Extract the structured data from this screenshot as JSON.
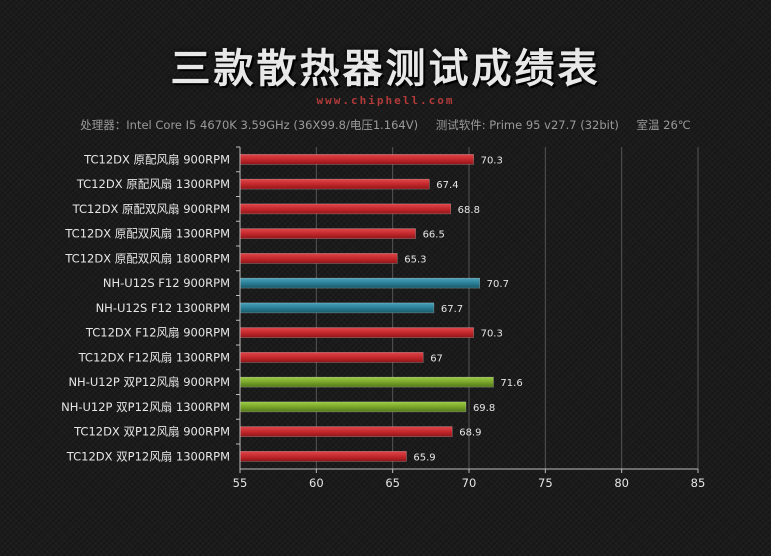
{
  "header": {
    "title": "三款散热器测试成绩表",
    "watermark": "www.chiphell.com",
    "cpu": "处理器：Intel Core I5 4670K 3.59GHz (36X99.8/电压1.164V)",
    "software": "测试软件: Prime 95 v27.7 (32bit)",
    "room_temp": "室温 26℃"
  },
  "chart_data": {
    "type": "bar",
    "orientation": "horizontal",
    "title": "三款散热器测试成绩表",
    "xlim": [
      55,
      85
    ],
    "xticks": [
      55,
      60,
      65,
      70,
      75,
      80,
      85
    ],
    "grid": true,
    "categories": [
      "TC12DX 原配风扇 900RPM",
      "TC12DX 原配风扇 1300RPM",
      "TC12DX 原配双风扇 900RPM",
      "TC12DX 原配双风扇 1300RPM",
      "TC12DX 原配双风扇 1800RPM",
      "NH-U12S F12 900RPM",
      "NH-U12S F12 1300RPM",
      "TC12DX F12风扇 900RPM",
      "TC12DX F12风扇 1300RPM",
      "NH-U12P 双P12风扇 900RPM",
      "NH-U12P 双P12风扇 1300RPM",
      "TC12DX 双P12风扇 900RPM",
      "TC12DX 双P12风扇 1300RPM"
    ],
    "values": [
      70.3,
      67.4,
      68.8,
      66.5,
      65.3,
      70.7,
      67.7,
      70.3,
      67,
      71.6,
      69.8,
      68.9,
      65.9
    ],
    "groups": [
      "TC12DX",
      "TC12DX",
      "TC12DX",
      "TC12DX",
      "TC12DX",
      "NH-U12S",
      "NH-U12S",
      "TC12DX",
      "TC12DX",
      "NH-U12P",
      "NH-U12P",
      "TC12DX",
      "TC12DX"
    ],
    "colors": {
      "TC12DX": "#c4282c",
      "NH-U12S": "#2a7f96",
      "NH-U12P": "#79a62a",
      "grid": "#555555",
      "axis": "#bdbdbd"
    }
  }
}
